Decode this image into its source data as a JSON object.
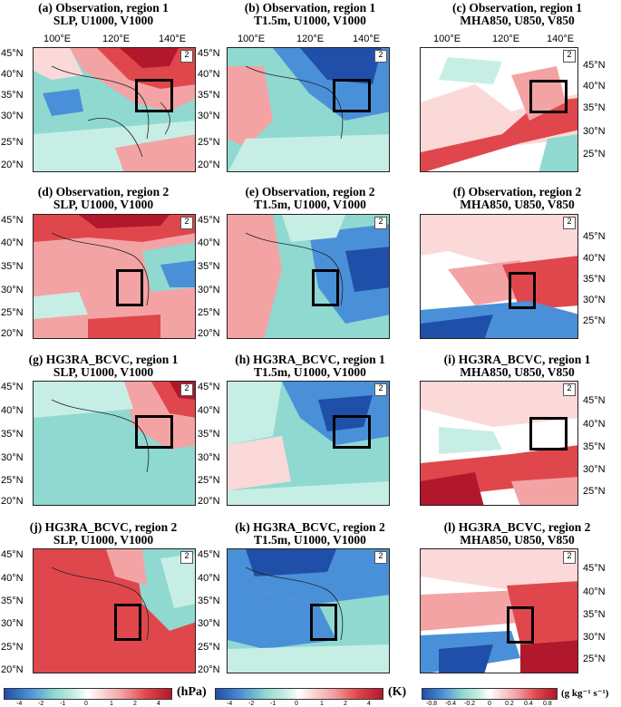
{
  "panels": [
    {
      "id": "a",
      "line1": "(a) Observation, region 1",
      "line2": "SLP, U1000, V1000",
      "ref": "2"
    },
    {
      "id": "b",
      "line1": "(b) Observation, region 1",
      "line2": "T1.5m, U1000, V1000",
      "ref": "2"
    },
    {
      "id": "c",
      "line1": "(c) Observation, region 1",
      "line2": "MHA850, U850, V850",
      "ref": "2"
    },
    {
      "id": "d",
      "line1": "(d) Observation, region 2",
      "line2": "SLP, U1000, V1000",
      "ref": "2"
    },
    {
      "id": "e",
      "line1": "(e) Observation, region 2",
      "line2": "T1.5m, U1000, V1000",
      "ref": "2"
    },
    {
      "id": "f",
      "line1": "(f) Observation, region 2",
      "line2": "MHA850, U850, V850",
      "ref": "2"
    },
    {
      "id": "g",
      "line1": "(g) HG3RA_BCVC, region 1",
      "line2": "SLP, U1000, V1000",
      "ref": "2"
    },
    {
      "id": "h",
      "line1": "(h) HG3RA_BCVC, region 1",
      "line2": "T1.5m, U1000, V1000",
      "ref": "2"
    },
    {
      "id": "i",
      "line1": "(i) HG3RA_BCVC, region 1",
      "line2": "MHA850, U850, V850",
      "ref": "2"
    },
    {
      "id": "j",
      "line1": "(j) HG3RA_BCVC, region 2",
      "line2": "SLP, U1000, V1000",
      "ref": "2"
    },
    {
      "id": "k",
      "line1": "(k) HG3RA_BCVC, region 2",
      "line2": "T1.5m, U1000, V1000",
      "ref": "2"
    },
    {
      "id": "l",
      "line1": "(l) HG3RA_BCVC, region 2",
      "line2": "MHA850, U850, V850",
      "ref": "2"
    }
  ],
  "lon_labels": [
    "100°E",
    "120°E",
    "140°E"
  ],
  "lat_labels_left": [
    "45°N",
    "40°N",
    "35°N",
    "30°N",
    "25°N",
    "20°N"
  ],
  "lat_labels_right": [
    "45°N",
    "40°N",
    "35°N",
    "30°N",
    "25°N"
  ],
  "colorbars": [
    {
      "ticks": [
        "-4",
        "-2",
        "-1",
        "0",
        "1",
        "2",
        "4"
      ],
      "unit": "(hPa)"
    },
    {
      "ticks": [
        "-4",
        "-2",
        "-1",
        "0",
        "1",
        "2",
        "4"
      ],
      "unit": "(K)"
    },
    {
      "ticks": [
        "-0.8",
        "-0.4",
        "-0.2",
        "0",
        "0.2",
        "0.4",
        "0.8"
      ],
      "unit": "(g kg⁻¹ s⁻¹)"
    }
  ],
  "colors": {
    "deep_red": "#b2182b",
    "red": "#e0474c",
    "pink": "#f4a3a5",
    "light_pink": "#fbd9d8",
    "white": "#ffffff",
    "light_cyan": "#c7eee5",
    "cyan": "#8fd9d1",
    "blue": "#4a90d9",
    "deep_blue": "#1f4fa8"
  }
}
